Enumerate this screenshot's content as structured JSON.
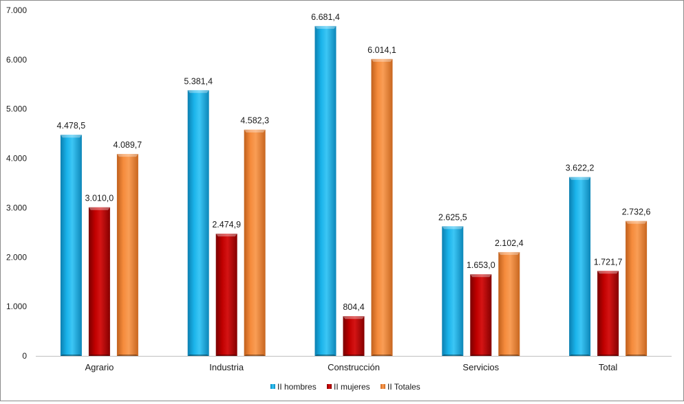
{
  "chart_data": {
    "type": "bar",
    "categories": [
      "Agrario",
      "Industria",
      "Construcción",
      "Servicios",
      "Total"
    ],
    "series": [
      {
        "name": "II hombres",
        "color": "#1ab3ea",
        "values": [
          4478.5,
          5381.4,
          6681.4,
          2625.5,
          3622.2
        ],
        "labels": [
          "4.478,5",
          "5.381,4",
          "6.681,4",
          "2.625,5",
          "3.622,2"
        ]
      },
      {
        "name": "II mujeres",
        "color": "#c00000",
        "values": [
          3010.0,
          2474.9,
          804.4,
          1653.0,
          1721.7
        ],
        "labels": [
          "3.010,0",
          "2.474,9",
          "804,4",
          "1.653,0",
          "1.721,7"
        ]
      },
      {
        "name": "II Totales",
        "color": "#f58b3c",
        "values": [
          4089.7,
          4582.3,
          6014.1,
          2102.4,
          2732.6
        ],
        "labels": [
          "4.089,7",
          "4.582,3",
          "6.014,1",
          "2.102,4",
          "2.732,6"
        ]
      }
    ],
    "y_ticks": [
      "0",
      "1.000",
      "2.000",
      "3.000",
      "4.000",
      "5.000",
      "6.000",
      "7.000"
    ],
    "ylim": [
      0,
      7000
    ],
    "grid": false,
    "legend_position": "bottom"
  }
}
